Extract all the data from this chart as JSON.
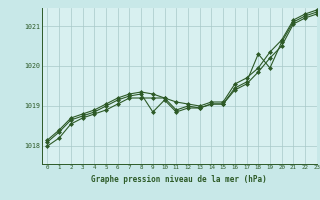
{
  "background_color": "#c8e8e8",
  "plot_background": "#d8f0f0",
  "line_color": "#2d5a27",
  "grid_color": "#a8c8c8",
  "xlabel": "Graphe pression niveau de la mer (hPa)",
  "xlim": [
    -0.5,
    23
  ],
  "ylim": [
    1017.55,
    1021.45
  ],
  "yticks": [
    1018,
    1019,
    1020,
    1021
  ],
  "xticks": [
    0,
    1,
    2,
    3,
    4,
    5,
    6,
    7,
    8,
    9,
    10,
    11,
    12,
    13,
    14,
    15,
    16,
    17,
    18,
    19,
    20,
    21,
    22,
    23
  ],
  "lines": [
    [
      1018.0,
      1018.2,
      1018.55,
      1018.7,
      1018.8,
      1018.9,
      1019.05,
      1019.2,
      1019.2,
      1019.2,
      1019.2,
      1018.9,
      1019.0,
      1018.95,
      1019.05,
      1019.05,
      1019.4,
      1019.55,
      1019.85,
      1020.2,
      1020.5,
      1021.05,
      1021.2,
      1021.3
    ],
    [
      1018.1,
      1018.35,
      1018.65,
      1018.75,
      1018.85,
      1019.0,
      1019.15,
      1019.25,
      1019.3,
      1018.85,
      1019.15,
      1018.85,
      1018.95,
      1018.95,
      1019.05,
      1019.05,
      1019.45,
      1019.6,
      1020.3,
      1019.95,
      1020.6,
      1021.1,
      1021.25,
      1021.35
    ],
    [
      1018.15,
      1018.4,
      1018.7,
      1018.8,
      1018.9,
      1019.05,
      1019.2,
      1019.3,
      1019.35,
      1019.3,
      1019.2,
      1019.1,
      1019.05,
      1019.0,
      1019.1,
      1019.1,
      1019.55,
      1019.7,
      1019.95,
      1020.35,
      1020.65,
      1021.15,
      1021.3,
      1021.4
    ]
  ]
}
